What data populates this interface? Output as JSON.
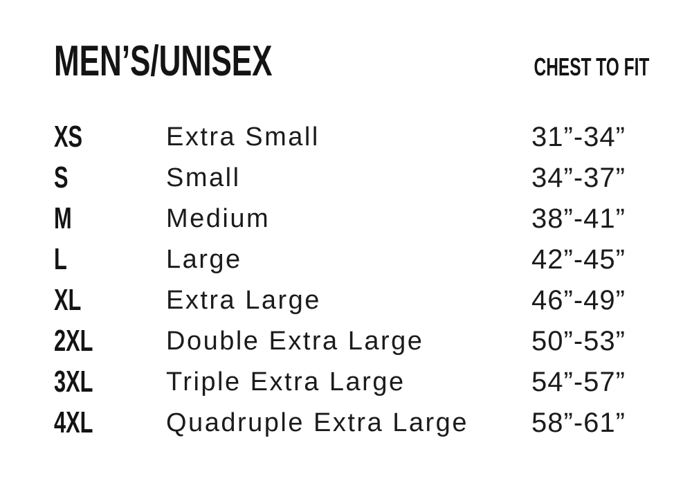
{
  "header": {
    "title": "MEN’S/UNISEX",
    "chest_label": "CHEST TO FIT"
  },
  "colors": {
    "background": "#ffffff",
    "text": "#161616"
  },
  "rows": [
    {
      "code": "XS",
      "name": "Extra Small",
      "range": "31”-34”"
    },
    {
      "code": "S",
      "name": "Small",
      "range": "34”-37”"
    },
    {
      "code": "M",
      "name": "Medium",
      "range": "38”-41”"
    },
    {
      "code": "L",
      "name": "Large",
      "range": "42”-45”"
    },
    {
      "code": "XL",
      "name": "Extra Large",
      "range": "46”-49”"
    },
    {
      "code": "2XL",
      "name": "Double Extra Large",
      "range": "50”-53”"
    },
    {
      "code": "3XL",
      "name": "Triple Extra Large",
      "range": "54”-57”"
    },
    {
      "code": "4XL",
      "name": "Quadruple Extra Large",
      "range": "58”-61”"
    }
  ]
}
